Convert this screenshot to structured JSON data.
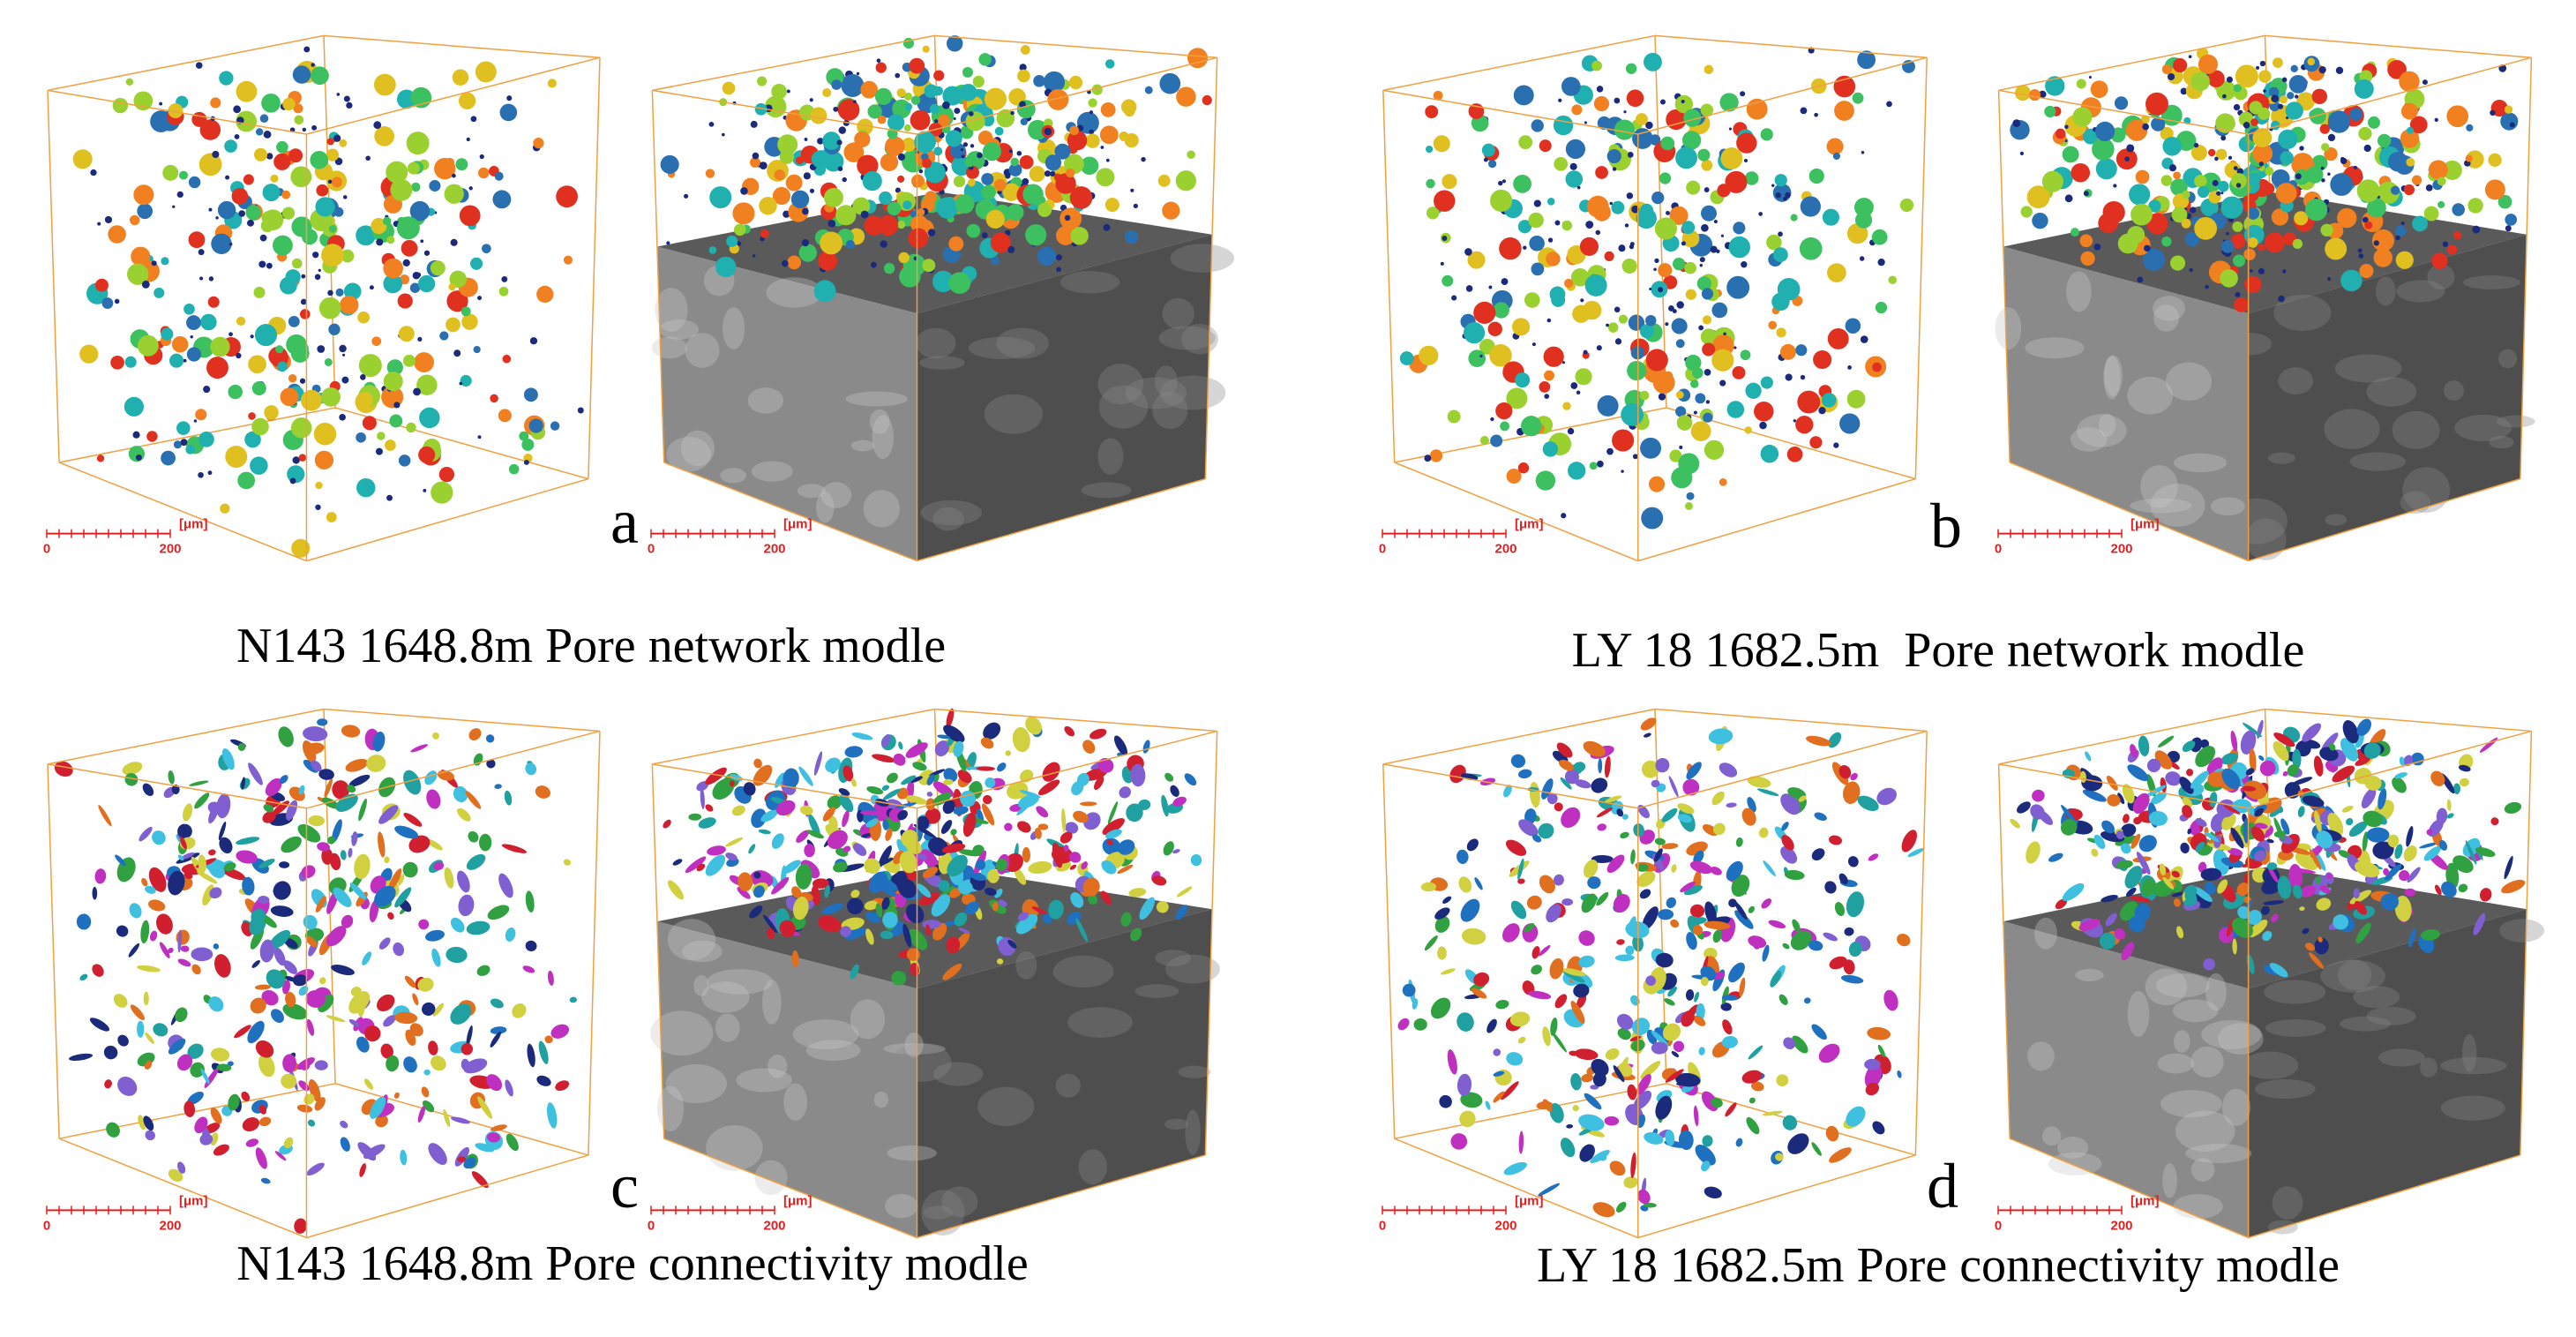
{
  "panels": [
    {
      "letter": "a",
      "caption": "N143 1648.8m Pore network modle",
      "views": [
        {
          "scale_bar": {
            "start": "0",
            "end": "200",
            "unit": "[μm]"
          }
        },
        {
          "scale_bar": {
            "start": "0",
            "end": "200",
            "unit": "[μm]"
          }
        }
      ]
    },
    {
      "letter": "b",
      "caption": "LY 18 1682.5m  Pore network modle",
      "views": [
        {
          "scale_bar": {
            "start": "0",
            "end": "200",
            "unit": "[μm]"
          }
        },
        {
          "scale_bar": {
            "start": "0",
            "end": "200",
            "unit": "[μm]"
          }
        }
      ]
    },
    {
      "letter": "c",
      "caption": "N143 1648.8m Pore connectivity modle",
      "views": [
        {
          "scale_bar": {
            "start": "0",
            "end": "200",
            "unit": "[μm]"
          }
        },
        {
          "scale_bar": {
            "start": "0",
            "end": "200",
            "unit": "[μm]"
          }
        }
      ]
    },
    {
      "letter": "d",
      "caption": "LY 18 1682.5m Pore connectivity modle",
      "views": [
        {
          "scale_bar": {
            "start": "0",
            "end": "200",
            "unit": "[μm]"
          }
        },
        {
          "scale_bar": {
            "start": "0",
            "end": "200",
            "unit": "[μm]"
          }
        }
      ]
    }
  ]
}
